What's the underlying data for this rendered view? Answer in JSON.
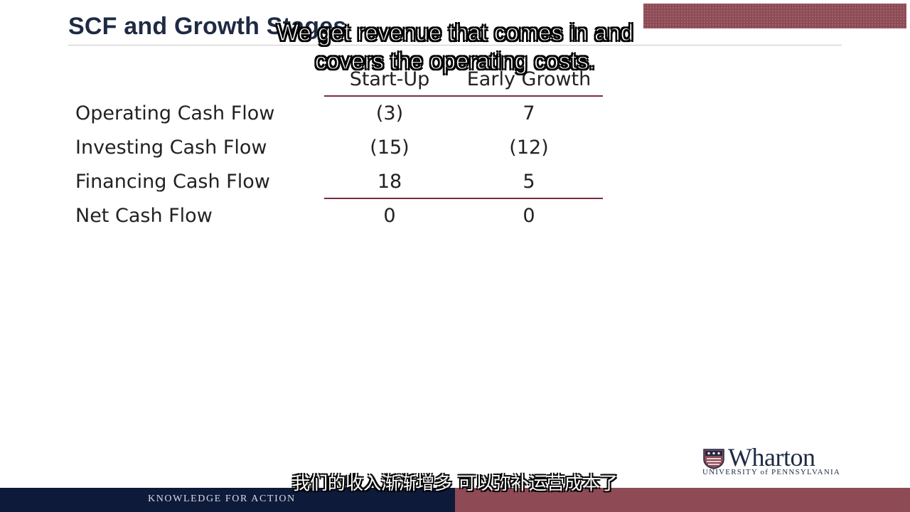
{
  "slide": {
    "title": "SCF and Growth Stages"
  },
  "table": {
    "columns": [
      "Start-Up",
      "Early Growth"
    ],
    "rows": [
      {
        "label": "Operating Cash Flow",
        "values": [
          "(3)",
          "7"
        ]
      },
      {
        "label": "Investing Cash Flow",
        "values": [
          "(15)",
          "(12)"
        ]
      },
      {
        "label": "Financing Cash Flow",
        "values": [
          "18",
          "5"
        ]
      },
      {
        "label": "Net Cash Flow",
        "values": [
          "0",
          "0"
        ]
      }
    ]
  },
  "subtitles": {
    "english_line1": "We get revenue that comes in and",
    "english_line2": "covers the operating costs.",
    "chinese": "我们的收入渐渐增多 可以弥补运营成本了"
  },
  "logo": {
    "name": "Wharton",
    "sub": "UNIVERSITY of PENNSYLVANIA"
  },
  "footer": {
    "tagline": "KNOWLEDGE FOR ACTION"
  },
  "colors": {
    "navy": "#0e1a3a",
    "maroon": "#8e4b55",
    "rule": "#7a2f3c"
  }
}
